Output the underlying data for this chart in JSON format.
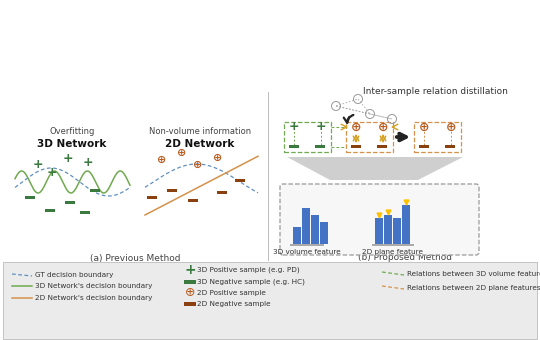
{
  "green_plus_color": "#3a7a3e",
  "green_minus_color": "#3a7a3e",
  "orange_plus_color": "#b85c20",
  "orange_minus_color": "#8b4010",
  "blue_line_color": "#6090c0",
  "green_line_color": "#70aa50",
  "orange_line_color": "#d4924a",
  "bar_blue": "#4472c4",
  "bar_gold": "#ffc000",
  "dashed_box_green": "#70aa50",
  "dashed_box_orange": "#d4924a",
  "title_a": "(a) Previous Method",
  "title_b": "(b) Proposed Method",
  "label_3d": "3D Network",
  "label_2d": "2D Network",
  "label_overfitting": "Overfitting",
  "label_nonvol": "Non-volume information",
  "label_3dvol": "3D volume feature",
  "label_2dplane": "2D plane feature",
  "label_intersample": "Inter-sample relation distillation",
  "bars_3d": [
    0.38,
    0.82,
    0.65,
    0.5
  ],
  "bars_2d": [
    0.6,
    0.65,
    0.6,
    0.88
  ],
  "bars_2d_gold": [
    true,
    true,
    false,
    true
  ],
  "legend_bg": "#ebebeb"
}
